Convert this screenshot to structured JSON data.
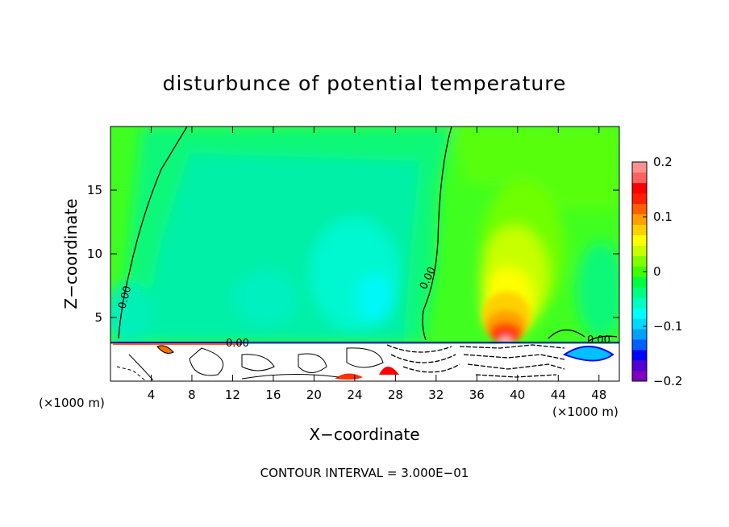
{
  "chart_data": {
    "type": "heatmap",
    "title": "disturbunce of potential temperature",
    "xlabel": "X−coordinate",
    "ylabel": "Z−coordinate",
    "x_unit_left": "(×1000 m)",
    "x_unit_right": "(×1000 m)",
    "xlim": [
      0,
      50
    ],
    "ylim": [
      0,
      20
    ],
    "x_ticks": [
      4,
      8,
      12,
      16,
      20,
      24,
      28,
      32,
      36,
      40,
      44,
      48
    ],
    "y_ticks": [
      5,
      10,
      15
    ],
    "colorbar": {
      "range": [
        -0.2,
        0.2
      ],
      "tick_values": [
        0.2,
        0.1,
        0,
        -0.1,
        -0.2
      ],
      "tick_labels": [
        "0.2",
        "0.1",
        "0",
        "−0.1",
        "−0.2"
      ],
      "colors": [
        "#8000c0",
        "#5000d0",
        "#0000ff",
        "#0060ff",
        "#00a0ff",
        "#00d8ff",
        "#00ffff",
        "#00ffc0",
        "#00ff80",
        "#00ff40",
        "#40ff00",
        "#80ff00",
        "#c8ff00",
        "#ffff00",
        "#ffd000",
        "#ffa000",
        "#ff6000",
        "#ff2000",
        "#ff0000",
        "#ff6060",
        "#ff9090"
      ]
    },
    "contour_labels": [
      "0.00",
      "0.00",
      "0.00",
      "0.00"
    ],
    "footer": "CONTOUR INTERVAL =  3.000E−01",
    "grid": false
  }
}
